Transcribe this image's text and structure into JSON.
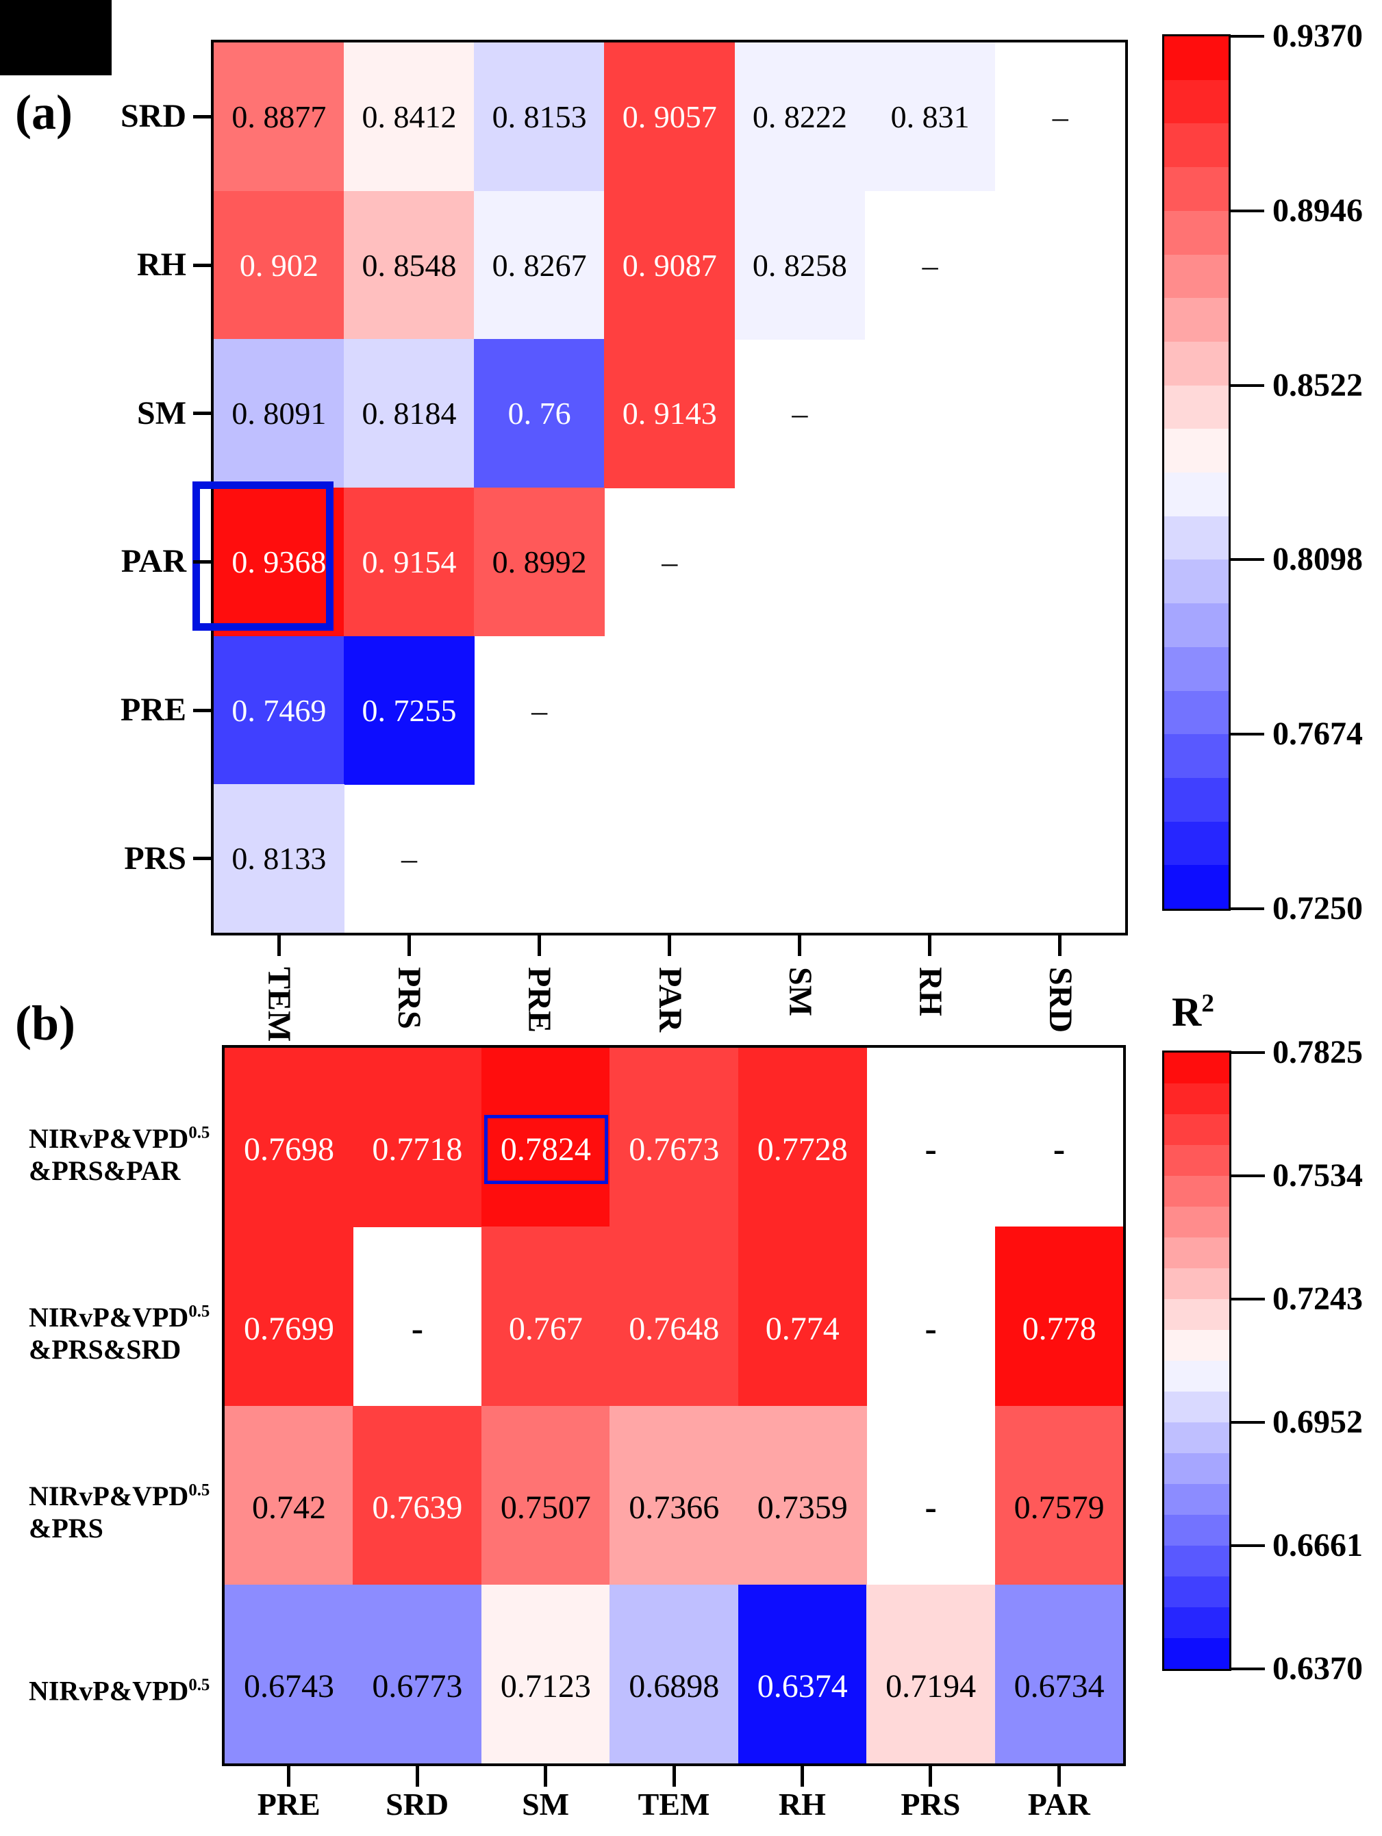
{
  "chart_data": [
    {
      "type": "heatmap",
      "panel": "(a)",
      "rows": [
        "SRD",
        "RH",
        "SM",
        "PAR",
        "PRE",
        "PRS"
      ],
      "cols": [
        "TEM",
        "PRS",
        "PRE",
        "PAR",
        "SM",
        "RH",
        "SRD"
      ],
      "values": [
        [
          0.8877,
          0.8412,
          0.8153,
          0.9057,
          0.8222,
          0.831,
          "-"
        ],
        [
          0.902,
          0.8548,
          0.8267,
          0.9087,
          0.8258,
          "-",
          null
        ],
        [
          0.8091,
          0.8184,
          0.76,
          0.9143,
          "-",
          null,
          null
        ],
        [
          0.9368,
          0.9154,
          0.8992,
          "-",
          null,
          null,
          null
        ],
        [
          0.7469,
          0.7255,
          "-",
          null,
          null,
          null,
          null
        ],
        [
          0.8133,
          "-",
          null,
          null,
          null,
          null,
          null
        ]
      ],
      "vmin": 0.725,
      "vmax": 0.937,
      "levels": 20,
      "colormap": "blue-white-red",
      "colorbar_ticks": [
        "0.9370",
        "0.8946",
        "0.8522",
        "0.8098",
        "0.7674",
        "0.7250"
      ],
      "colorbar_title": "",
      "dash": "–",
      "decimal_space": true,
      "highlight_cell": {
        "row": 3,
        "col": 0,
        "value": 0.9368
      },
      "highlight_color": "#0012e0"
    },
    {
      "type": "heatmap",
      "panel": "(b)",
      "rows": [
        "NIRvP&VPD^0.5\n&PRS&PAR",
        "NIRvP&VPD^0.5\n&PRS&SRD",
        "NIRvP&VPD^0.5\n&PRS",
        "NIRvP&VPD^0.5"
      ],
      "cols": [
        "PRE",
        "SRD",
        "SM",
        "TEM",
        "RH",
        "PRS",
        "PAR"
      ],
      "values": [
        [
          0.7698,
          0.7718,
          0.7824,
          0.7673,
          0.7728,
          "-",
          "-"
        ],
        [
          0.7699,
          "-",
          0.767,
          0.7648,
          0.774,
          "-",
          0.778
        ],
        [
          0.742,
          0.7639,
          0.7507,
          0.7366,
          0.7359,
          "-",
          0.7579
        ],
        [
          0.6743,
          0.6773,
          0.7123,
          0.6898,
          0.6374,
          0.7194,
          0.6734
        ]
      ],
      "vmin": 0.637,
      "vmax": 0.7825,
      "levels": 20,
      "colormap": "blue-white-red",
      "colorbar_ticks": [
        "0.7825",
        "0.7534",
        "0.7243",
        "0.6952",
        "0.6661",
        "0.6370"
      ],
      "colorbar_title": "R^2",
      "dash": "-",
      "decimal_space": false,
      "highlight_cell": {
        "row": 0,
        "col": 2,
        "value": 0.7824
      },
      "highlight_color": "#0012e0"
    }
  ]
}
